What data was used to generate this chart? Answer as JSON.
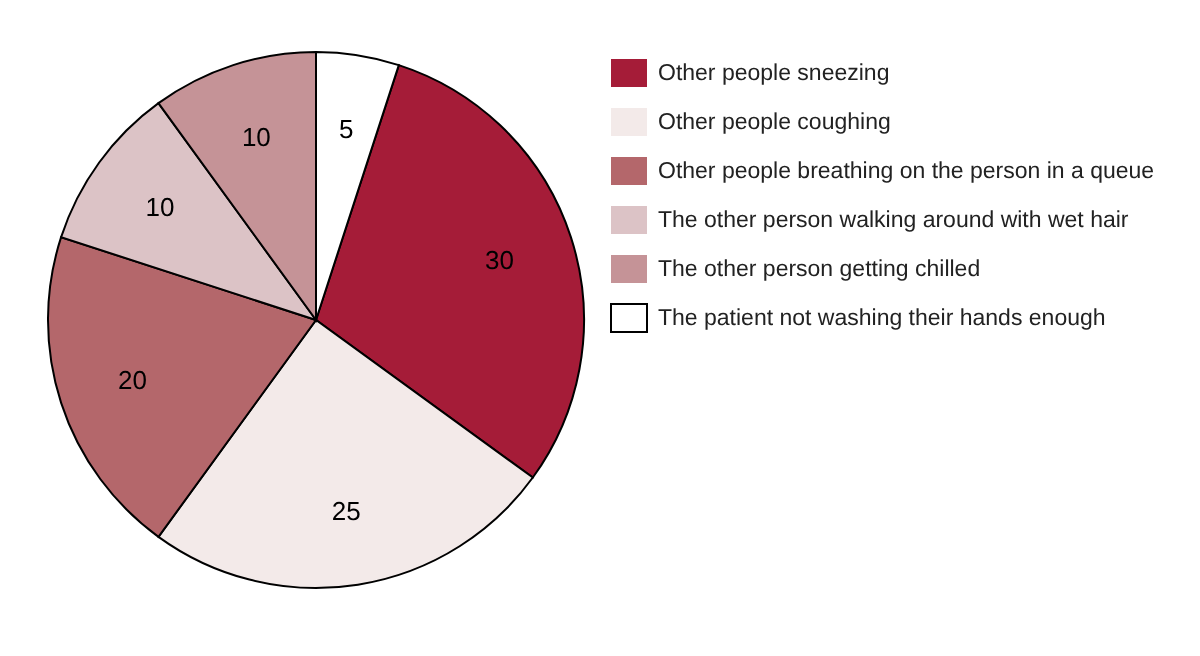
{
  "chart_data": {
    "type": "pie",
    "categories": [
      "Other people sneezing",
      "Other people coughing",
      "Other people breathing on the person in a queue",
      "The other person walking around with wet hair",
      "The other person getting chilled",
      "The patient not washing their hands enough"
    ],
    "values": [
      30,
      25,
      20,
      10,
      10,
      5
    ],
    "colors": [
      "#a51c38",
      "#f3eae9",
      "#b4676b",
      "#dcc3c6",
      "#c59397",
      "#ffffff"
    ],
    "data_labels": true,
    "legend": "right"
  }
}
